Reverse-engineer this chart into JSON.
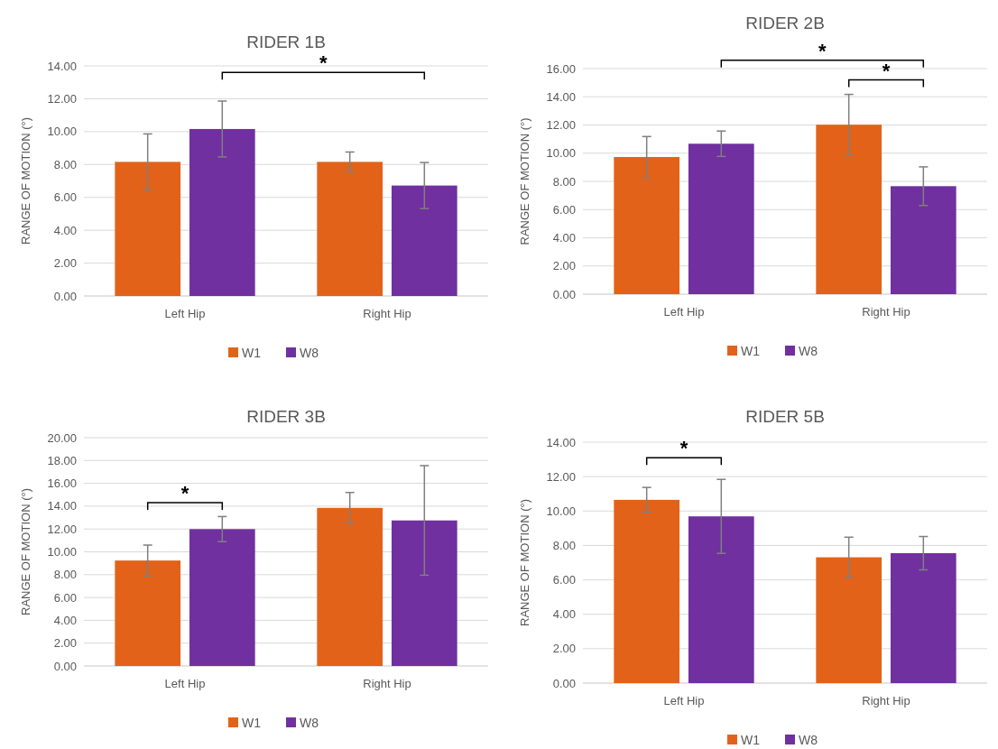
{
  "chart_data": [
    {
      "type": "bar",
      "title": "RIDER 1B",
      "ylabel": "RANGE OF MOTION (°)",
      "categories": [
        "Left Hip",
        "Right Hip"
      ],
      "series": [
        {
          "name": "W1",
          "color": "#e36219",
          "values": [
            8.16,
            8.16
          ],
          "errors": [
            1.7,
            0.6
          ]
        },
        {
          "name": "W8",
          "color": "#7030a0",
          "values": [
            10.16,
            6.72
          ],
          "errors": [
            1.7,
            1.4
          ]
        }
      ],
      "ylim": [
        0,
        14
      ],
      "yticks": [
        {
          "value": 0,
          "label": "0.00"
        },
        {
          "value": 2,
          "label": "2.00"
        },
        {
          "value": 4,
          "label": "4.00"
        },
        {
          "value": 6,
          "label": "6.00"
        },
        {
          "value": 8,
          "label": "8.00"
        },
        {
          "value": 10,
          "label": "10.00"
        },
        {
          "value": 12,
          "label": "12.00"
        },
        {
          "value": 14,
          "label": "14.00"
        }
      ],
      "grid": "y",
      "legend": "bottom",
      "annotations": [
        "*"
      ]
    },
    {
      "type": "bar",
      "title": "RIDER 2B",
      "ylabel": "RANGE OF MOTION (°)",
      "categories": [
        "Left Hip",
        "Right Hip"
      ],
      "series": [
        {
          "name": "W1",
          "color": "#e36219",
          "values": [
            9.73,
            12.02
          ],
          "errors": [
            1.45,
            2.15
          ]
        },
        {
          "name": "W8",
          "color": "#7030a0",
          "values": [
            10.67,
            7.66
          ],
          "errors": [
            0.9,
            1.37
          ]
        }
      ],
      "ylim": [
        0,
        16
      ],
      "yticks": [
        {
          "value": 0,
          "label": "0.00"
        },
        {
          "value": 2,
          "label": "2.00"
        },
        {
          "value": 4,
          "label": "4.00"
        },
        {
          "value": 6,
          "label": "6.00"
        },
        {
          "value": 8,
          "label": "8.00"
        },
        {
          "value": 10,
          "label": "10.00"
        },
        {
          "value": 12,
          "label": "12.00"
        },
        {
          "value": 14,
          "label": "14.00"
        },
        {
          "value": 16,
          "label": "16.00"
        }
      ],
      "grid": "y",
      "legend": "bottom",
      "annotations": [
        "*",
        "*"
      ]
    },
    {
      "type": "bar",
      "title": "RIDER 3B",
      "ylabel": "RANGE OF MOTION (°)",
      "categories": [
        "Left Hip",
        "Right Hip"
      ],
      "series": [
        {
          "name": "W1",
          "color": "#e36219",
          "values": [
            9.24,
            13.85
          ],
          "errors": [
            1.35,
            1.35
          ]
        },
        {
          "name": "W8",
          "color": "#7030a0",
          "values": [
            11.99,
            12.75
          ],
          "errors": [
            1.1,
            4.8
          ]
        }
      ],
      "ylim": [
        0,
        20
      ],
      "yticks": [
        {
          "value": 0,
          "label": "0.00"
        },
        {
          "value": 2,
          "label": "2.00"
        },
        {
          "value": 4,
          "label": "4.00"
        },
        {
          "value": 6,
          "label": "6.00"
        },
        {
          "value": 8,
          "label": "8.00"
        },
        {
          "value": 10,
          "label": "10.00"
        },
        {
          "value": 12,
          "label": "12.00"
        },
        {
          "value": 14,
          "label": "14.00"
        },
        {
          "value": 16,
          "label": "16.00"
        },
        {
          "value": 18,
          "label": "18.00"
        },
        {
          "value": 20,
          "label": "20.00"
        }
      ],
      "grid": "y",
      "legend": "bottom",
      "annotations": [
        "*"
      ]
    },
    {
      "type": "bar",
      "title": "RIDER 5B",
      "ylabel": "RANGE OF MOTION (°)",
      "categories": [
        "Left Hip",
        "Right Hip"
      ],
      "series": [
        {
          "name": "W1",
          "color": "#e36219",
          "values": [
            10.65,
            7.31
          ],
          "errors": [
            0.72,
            1.17
          ]
        },
        {
          "name": "W8",
          "color": "#7030a0",
          "values": [
            9.69,
            7.55
          ],
          "errors": [
            2.15,
            0.97
          ]
        }
      ],
      "ylim": [
        0,
        14
      ],
      "yticks": [
        {
          "value": 0,
          "label": "0.00"
        },
        {
          "value": 2,
          "label": "2.00"
        },
        {
          "value": 4,
          "label": "4.00"
        },
        {
          "value": 6,
          "label": "6.00"
        },
        {
          "value": 8,
          "label": "8.00"
        },
        {
          "value": 10,
          "label": "10.00"
        },
        {
          "value": 12,
          "label": "12.00"
        },
        {
          "value": 14,
          "label": "14.00"
        }
      ],
      "grid": "y",
      "legend": "bottom",
      "annotations": [
        "*"
      ]
    }
  ]
}
